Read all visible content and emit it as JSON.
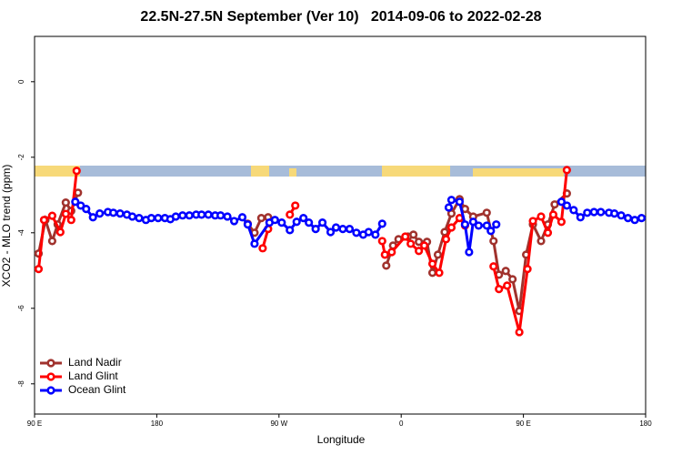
{
  "chart_data": {
    "type": "line",
    "title": "22.5N-27.5N September (Ver 10)   2014-09-06 to 2022-02-28",
    "x_label": "Longitude",
    "y_label": "XCO2 - MLO trend (ppm)",
    "xlim": [
      90,
      540
    ],
    "xticks": [
      {
        "value": 90,
        "label": "90 E"
      },
      {
        "value": 180,
        "label": "180"
      },
      {
        "value": 270,
        "label": "90 W"
      },
      {
        "value": 360,
        "label": "0"
      },
      {
        "value": 450,
        "label": "90 E"
      },
      {
        "value": 540,
        "label": "180"
      }
    ],
    "ylim": [
      -8.8,
      1.2
    ],
    "yticks": [
      0,
      -2,
      -4,
      -6,
      -8
    ],
    "legend": "lower left",
    "series": [
      {
        "name": "Land Nadir",
        "color": "#a0322d",
        "x": [
          93,
          98,
          103,
          107,
          113,
          117,
          122,
          null,
          247,
          252,
          257,
          262,
          null,
          349,
          354,
          358,
          365,
          369,
          373,
          379,
          383,
          387,
          392,
          397,
          403,
          407,
          413,
          423,
          428,
          432,
          437,
          442,
          447,
          452,
          457,
          463,
          468,
          473,
          482
        ],
        "values": [
          -4.55,
          -3.66,
          -4.22,
          -3.78,
          -3.2,
          -3.42,
          -2.94,
          null,
          -3.76,
          -4.0,
          -3.61,
          -3.59,
          null,
          -4.87,
          -4.34,
          -4.17,
          -4.1,
          -4.05,
          -4.24,
          -4.24,
          -5.06,
          -4.58,
          -3.98,
          -3.49,
          -3.11,
          -3.37,
          -3.57,
          -3.47,
          -4.22,
          -5.11,
          -5.01,
          -5.23,
          -6.07,
          -4.58,
          -3.78,
          -4.22,
          -3.78,
          -3.25,
          -2.96
        ]
      },
      {
        "name": "Land Glint",
        "color": "#ff0000",
        "x": [
          93,
          97,
          103,
          109,
          113,
          117,
          121,
          null,
          258,
          262,
          null,
          278,
          282,
          null,
          346,
          348,
          353,
          363,
          367,
          373,
          377,
          383,
          388,
          393,
          397,
          403,
          407,
          null,
          428,
          432,
          438,
          447,
          453,
          457,
          463,
          468,
          472,
          478,
          482
        ],
        "values": [
          -4.96,
          -3.66,
          -3.55,
          -3.98,
          -3.5,
          -3.66,
          -2.36,
          null,
          -4.41,
          -3.9,
          null,
          -3.52,
          -3.28,
          null,
          -4.22,
          -4.58,
          -4.51,
          -4.1,
          -4.29,
          -4.48,
          -4.34,
          -4.82,
          -5.06,
          -4.17,
          -3.86,
          -3.61,
          -3.81,
          null,
          -4.89,
          -5.49,
          -5.4,
          -6.63,
          -4.96,
          -3.69,
          -3.57,
          -4.0,
          -3.52,
          -3.71,
          -2.34
        ]
      },
      {
        "name": "Ocean Glint",
        "color": "#0000ff",
        "x": [
          120,
          124,
          128,
          133,
          138,
          144,
          148,
          153,
          158,
          162,
          167,
          172,
          176,
          181,
          186,
          190,
          194,
          199,
          204,
          209,
          213,
          218,
          223,
          227,
          232,
          237,
          243,
          247,
          252,
          263,
          267,
          272,
          278,
          283,
          288,
          292,
          297,
          302,
          308,
          312,
          317,
          322,
          327,
          332,
          336,
          341,
          346,
          null,
          395,
          397,
          403,
          407,
          410,
          413,
          417,
          423,
          426,
          430,
          null,
          478,
          482,
          487,
          492,
          497,
          502,
          507,
          513,
          517,
          522,
          527,
          532,
          537
        ],
        "values": [
          -3.18,
          -3.28,
          -3.37,
          -3.59,
          -3.49,
          -3.45,
          -3.47,
          -3.49,
          -3.52,
          -3.57,
          -3.61,
          -3.66,
          -3.61,
          -3.61,
          -3.61,
          -3.64,
          -3.57,
          -3.54,
          -3.54,
          -3.52,
          -3.52,
          -3.52,
          -3.54,
          -3.54,
          -3.57,
          -3.69,
          -3.59,
          -3.78,
          -4.29,
          -3.73,
          -3.66,
          -3.73,
          -3.93,
          -3.71,
          -3.61,
          -3.73,
          -3.9,
          -3.73,
          -3.98,
          -3.86,
          -3.9,
          -3.9,
          -4.0,
          -4.05,
          -3.98,
          -4.05,
          -3.76,
          null,
          -3.33,
          -3.13,
          -3.18,
          -3.78,
          -4.51,
          -3.71,
          -3.81,
          -3.81,
          -3.95,
          -3.78,
          null,
          -3.18,
          -3.28,
          -3.4,
          -3.59,
          -3.47,
          -3.45,
          -3.45,
          -3.47,
          -3.49,
          -3.54,
          -3.61,
          -3.66,
          -3.61
        ]
      }
    ]
  }
}
